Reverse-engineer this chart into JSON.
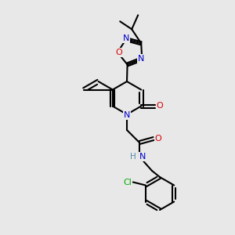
{
  "bg_color": "#e8e8e8",
  "atom_colors": {
    "C": "#000000",
    "N": "#0000cc",
    "O": "#dd0000",
    "Cl": "#00aa00",
    "H": "#5588aa"
  }
}
